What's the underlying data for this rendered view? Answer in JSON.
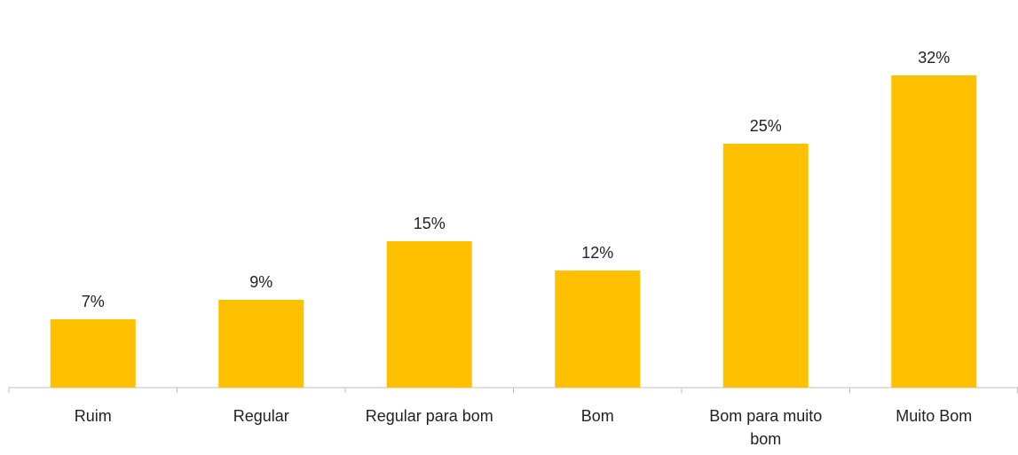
{
  "chart_data": {
    "type": "bar",
    "categories": [
      "Ruim",
      "Regular",
      "Regular para bom",
      "Bom",
      "Bom para muito bom",
      "Muito Bom"
    ],
    "values": [
      7,
      9,
      15,
      12,
      25,
      32
    ],
    "value_labels": [
      "7%",
      "9%",
      "15%",
      "12%",
      "25%",
      "32%"
    ],
    "color": "#ffc000"
  }
}
